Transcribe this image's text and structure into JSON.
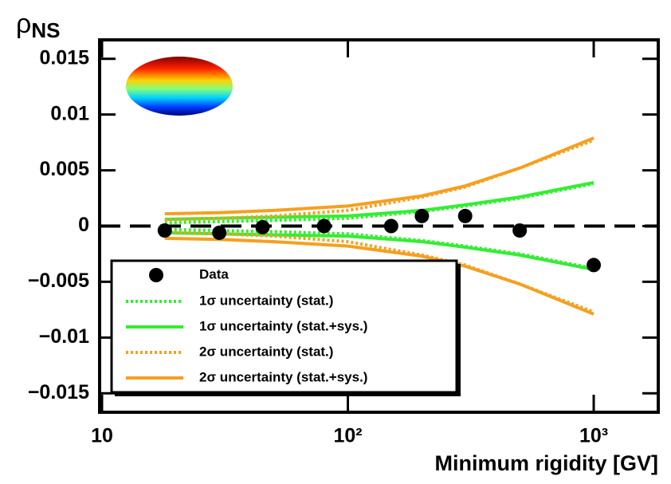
{
  "chart_data": {
    "type": "scatter",
    "y_label": "ρ",
    "y_label_sub": "NS",
    "x_label": "Minimum rigidity [GV]",
    "log_x": true,
    "zero_line": true,
    "xlim": [
      10,
      1830
    ],
    "xticks": [
      10,
      {
        "value": 100,
        "label": "10²"
      },
      {
        "value": 1000,
        "label": "10³"
      }
    ],
    "ylim": [
      -0.0167,
      0.0167
    ],
    "yticks": [
      {
        "value": -0.015,
        "label": "−0.015"
      },
      {
        "value": -0.01,
        "label": "−0.01"
      },
      {
        "value": -0.005,
        "label": "−0.005"
      },
      0,
      0.005,
      0.01,
      0.015
    ],
    "data": {
      "name": "Data",
      "color": "#000000",
      "x": [
        18,
        30,
        45,
        80,
        150,
        200,
        300,
        500,
        1000
      ],
      "values": [
        -0.0004,
        -0.0006,
        -0.0001,
        0,
        0,
        0.0009,
        0.0009,
        -0.0004,
        -0.0035
      ]
    },
    "series": [
      {
        "name": "1σ uncertainty (stat.)",
        "color": "#33ee33",
        "dotted": true,
        "x": [
          18,
          30,
          50,
          100,
          200,
          300,
          500,
          1000
        ],
        "upper": [
          0.0003,
          0.0004,
          0.0005,
          0.0007,
          0.0013,
          0.0018,
          0.0025,
          0.0038
        ],
        "lower": [
          -0.0003,
          -0.0004,
          -0.0005,
          -0.0007,
          -0.0013,
          -0.0018,
          -0.0025,
          -0.0038
        ]
      },
      {
        "name": "1σ uncertainty (stat.+sys.)",
        "color": "#33ee33",
        "dotted": false,
        "x": [
          18,
          30,
          50,
          100,
          200,
          300,
          500,
          1000
        ],
        "upper": [
          0.0006,
          0.0007,
          0.0008,
          0.0009,
          0.0014,
          0.0019,
          0.0026,
          0.0039
        ],
        "lower": [
          -0.0006,
          -0.0007,
          -0.0008,
          -0.0009,
          -0.0014,
          -0.0019,
          -0.0026,
          -0.0039
        ]
      },
      {
        "name": "2σ uncertainty (stat.)",
        "color": "#f5a020",
        "dotted": true,
        "x": [
          18,
          30,
          50,
          100,
          200,
          300,
          500,
          1000
        ],
        "upper": [
          0.0005,
          0.0007,
          0.0009,
          0.0014,
          0.0026,
          0.0035,
          0.0052,
          0.0077
        ],
        "lower": [
          -0.0005,
          -0.0007,
          -0.0009,
          -0.0014,
          -0.0026,
          -0.0035,
          -0.0052,
          -0.0077
        ]
      },
      {
        "name": "2σ uncertainty (stat.+sys.)",
        "color": "#f5a020",
        "dotted": false,
        "x": [
          18,
          30,
          50,
          100,
          200,
          300,
          500,
          1000
        ],
        "upper": [
          0.0011,
          0.0012,
          0.0014,
          0.0018,
          0.0027,
          0.0036,
          0.0052,
          0.0079
        ],
        "lower": [
          -0.0011,
          -0.0012,
          -0.0014,
          -0.0018,
          -0.0027,
          -0.0036,
          -0.0052,
          -0.0079
        ]
      }
    ]
  }
}
